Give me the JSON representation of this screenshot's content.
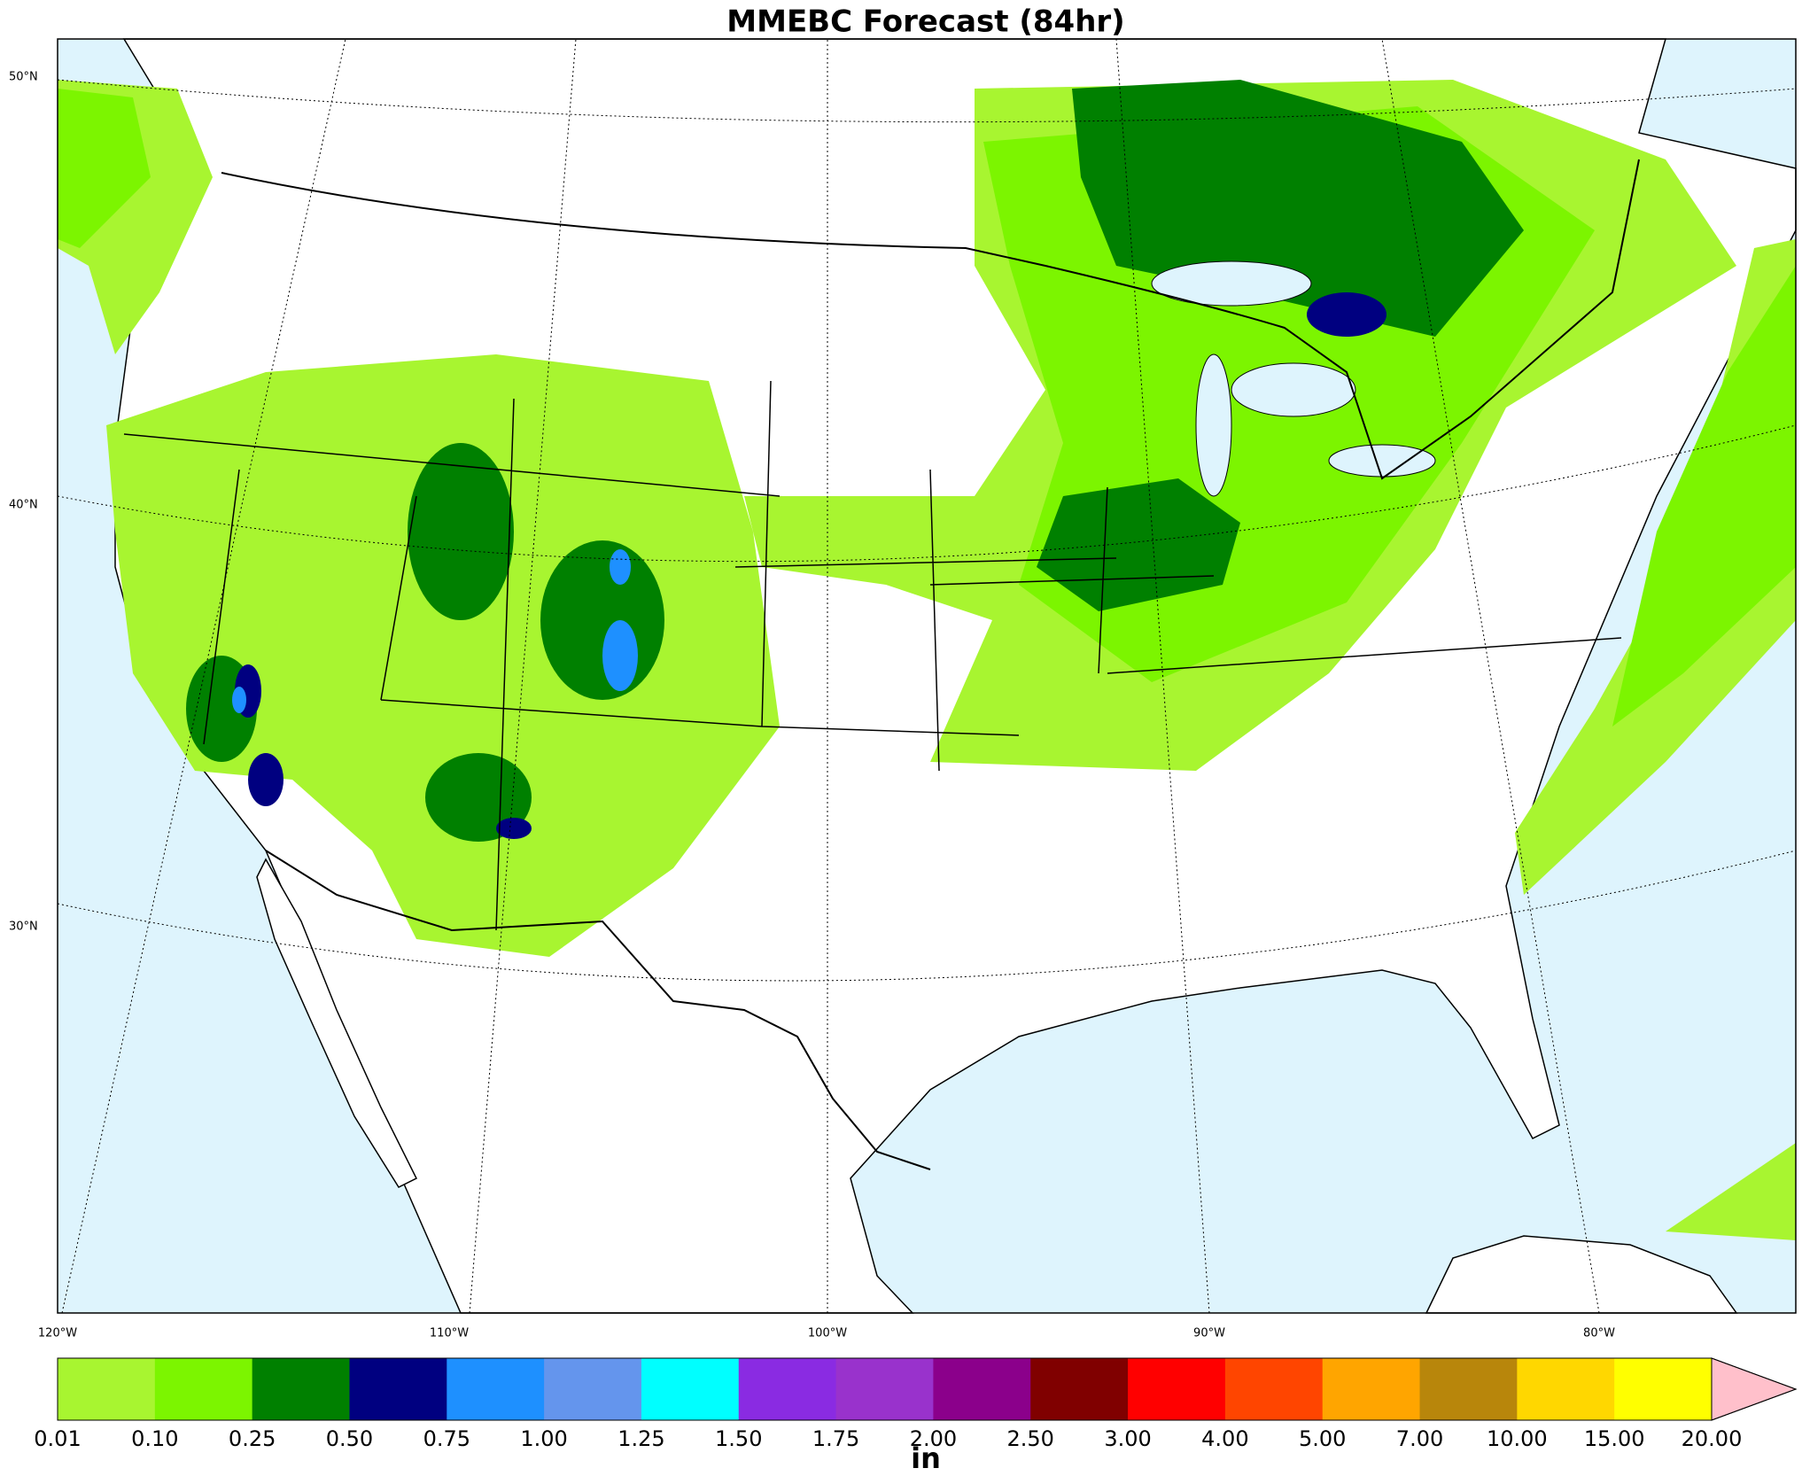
{
  "title": "MMEBC Forecast (84hr)",
  "lat_labels": [
    "50°N",
    "40°N",
    "30°N"
  ],
  "lon_labels": [
    "120°W",
    "110°W",
    "100°W",
    "90°W",
    "80°W"
  ],
  "colorbar": {
    "ticks": [
      "0.01",
      "0.10",
      "0.25",
      "0.50",
      "0.75",
      "1.00",
      "1.25",
      "1.50",
      "1.75",
      "2.00",
      "2.50",
      "3.00",
      "4.00",
      "5.00",
      "7.00",
      "10.00",
      "15.00",
      "20.00"
    ],
    "colors": [
      "#a8f530",
      "#7cf500",
      "#008000",
      "#000080",
      "#1e90ff",
      "#6495ed",
      "#00ffff",
      "#8a2be2",
      "#9932cc",
      "#8b008b",
      "#800000",
      "#ff0000",
      "#ff4500",
      "#ffa500",
      "#b8860b",
      "#ffd700",
      "#ffff00"
    ],
    "extend_color": "#ffc0cb",
    "unit": "in"
  }
}
